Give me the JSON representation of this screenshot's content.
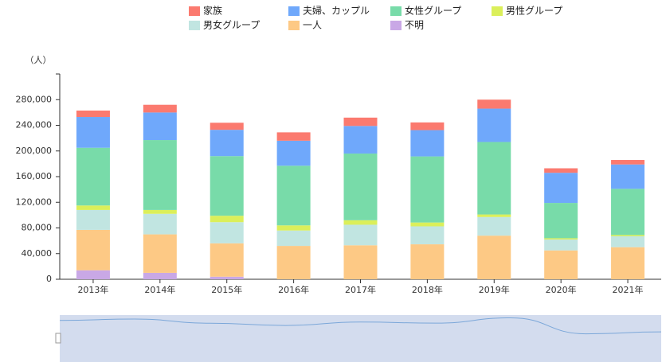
{
  "chart_data": {
    "type": "bar",
    "stacked": true,
    "y_label": "（人）",
    "categories": [
      "2013年",
      "2014年",
      "2015年",
      "2016年",
      "2017年",
      "2018年",
      "2019年",
      "2020年",
      "2021年"
    ],
    "series": [
      {
        "name": "家族",
        "color": "#fb7a6f",
        "values": [
          10000,
          12000,
          11000,
          13000,
          13000,
          12000,
          14000,
          7000,
          7000
        ]
      },
      {
        "name": "夫婦、カップル",
        "color": "#6fa8fb",
        "values": [
          48000,
          43000,
          41000,
          39000,
          43000,
          41000,
          52000,
          47000,
          38000
        ]
      },
      {
        "name": "女性グループ",
        "color": "#78dba9",
        "values": [
          90000,
          109000,
          93000,
          93000,
          104000,
          103000,
          113000,
          55000,
          72000
        ]
      },
      {
        "name": "男性グループ",
        "color": "#dbef5a",
        "values": [
          7000,
          6000,
          10000,
          8000,
          7000,
          6000,
          4000,
          2000,
          2000
        ]
      },
      {
        "name": "男女グループ",
        "color": "#c1e5e1",
        "values": [
          31000,
          32000,
          33000,
          24000,
          32000,
          28000,
          29000,
          17000,
          17000
        ]
      },
      {
        "name": "一人",
        "color": "#fdc985",
        "values": [
          63000,
          60000,
          52000,
          52000,
          53000,
          54500,
          68000,
          45000,
          50000
        ]
      },
      {
        "name": "不明",
        "color": "#c9a8e6",
        "values": [
          14000,
          10000,
          4000,
          0,
          0,
          0,
          0,
          0,
          0
        ]
      }
    ],
    "ylim": [
      0,
      320000
    ],
    "yticks": [
      0,
      {
        "value": 40000,
        "label": "40,000"
      },
      {
        "value": 80000,
        "label": "80,000"
      },
      {
        "value": 120000,
        "label": "120,000"
      },
      {
        "value": 160000,
        "label": "160,000"
      },
      {
        "value": 200000,
        "label": "200,000"
      },
      {
        "value": 240000,
        "label": "240,000"
      },
      {
        "value": 280000,
        "label": "280,000"
      }
    ],
    "grid": false
  }
}
